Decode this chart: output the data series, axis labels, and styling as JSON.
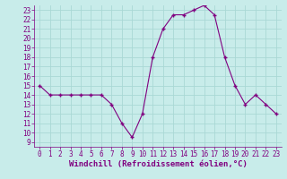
{
  "x": [
    0,
    1,
    2,
    3,
    4,
    5,
    6,
    7,
    8,
    9,
    10,
    11,
    12,
    13,
    14,
    15,
    16,
    17,
    18,
    19,
    20,
    21,
    22,
    23
  ],
  "y": [
    15,
    14,
    14,
    14,
    14,
    14,
    14,
    13,
    11,
    9.5,
    12,
    18,
    21,
    22.5,
    22.5,
    23,
    23.5,
    22.5,
    18,
    15,
    13,
    14,
    13,
    12
  ],
  "line_color": "#800080",
  "marker": "+",
  "marker_color": "#800080",
  "bg_color": "#c8ecea",
  "grid_color": "#aad8d5",
  "xlabel": "Windchill (Refroidissement éolien,°C)",
  "xlabel_color": "#800080",
  "xlabel_fontsize": 6.5,
  "tick_color": "#800080",
  "tick_fontsize": 5.5,
  "xlim": [
    -0.5,
    23.5
  ],
  "ylim": [
    8.5,
    23.5
  ],
  "yticks": [
    9,
    10,
    11,
    12,
    13,
    14,
    15,
    16,
    17,
    18,
    19,
    20,
    21,
    22,
    23
  ],
  "xticks": [
    0,
    1,
    2,
    3,
    4,
    5,
    6,
    7,
    8,
    9,
    10,
    11,
    12,
    13,
    14,
    15,
    16,
    17,
    18,
    19,
    20,
    21,
    22,
    23
  ]
}
